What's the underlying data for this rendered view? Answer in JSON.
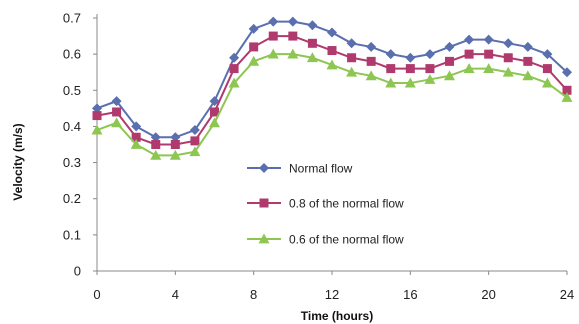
{
  "chart_data": {
    "type": "line",
    "xlabel": "Time (hours)",
    "ylabel": "Velocity (m/s)",
    "xlim": [
      0,
      24
    ],
    "ylim": [
      0,
      0.7
    ],
    "xticks": [
      0,
      4,
      8,
      12,
      16,
      20,
      24
    ],
    "yticks": [
      0,
      0.1,
      0.2,
      0.3,
      0.4,
      0.5,
      0.6,
      0.7
    ],
    "ytick_labels": [
      "0",
      "0.1",
      "0.2",
      "0.3",
      "0.4",
      "0.5",
      "0.6",
      "0.7"
    ],
    "grid": false,
    "legend_position": "center",
    "x": [
      0,
      1,
      2,
      3,
      4,
      5,
      6,
      7,
      8,
      9,
      10,
      11,
      12,
      13,
      14,
      15,
      16,
      17,
      18,
      19,
      20,
      21,
      22,
      23,
      24
    ],
    "series": [
      {
        "name": "Normal flow",
        "color": "#5a6fae",
        "marker": "diamond",
        "values": [
          0.45,
          0.47,
          0.4,
          0.37,
          0.37,
          0.39,
          0.47,
          0.59,
          0.67,
          0.69,
          0.69,
          0.68,
          0.66,
          0.63,
          0.62,
          0.6,
          0.59,
          0.6,
          0.62,
          0.64,
          0.64,
          0.63,
          0.62,
          0.6,
          0.55
        ]
      },
      {
        "name": "0.8 of the normal flow",
        "color": "#b03a6e",
        "marker": "square",
        "values": [
          0.43,
          0.44,
          0.37,
          0.35,
          0.35,
          0.36,
          0.44,
          0.56,
          0.62,
          0.65,
          0.65,
          0.63,
          0.61,
          0.59,
          0.58,
          0.56,
          0.56,
          0.56,
          0.58,
          0.6,
          0.6,
          0.59,
          0.58,
          0.56,
          0.5
        ]
      },
      {
        "name": "0.6 of the normal flow",
        "color": "#8dc651",
        "marker": "triangle",
        "values": [
          0.39,
          0.41,
          0.35,
          0.32,
          0.32,
          0.33,
          0.41,
          0.52,
          0.58,
          0.6,
          0.6,
          0.59,
          0.57,
          0.55,
          0.54,
          0.52,
          0.52,
          0.53,
          0.54,
          0.56,
          0.56,
          0.55,
          0.54,
          0.52,
          0.48
        ]
      }
    ]
  }
}
